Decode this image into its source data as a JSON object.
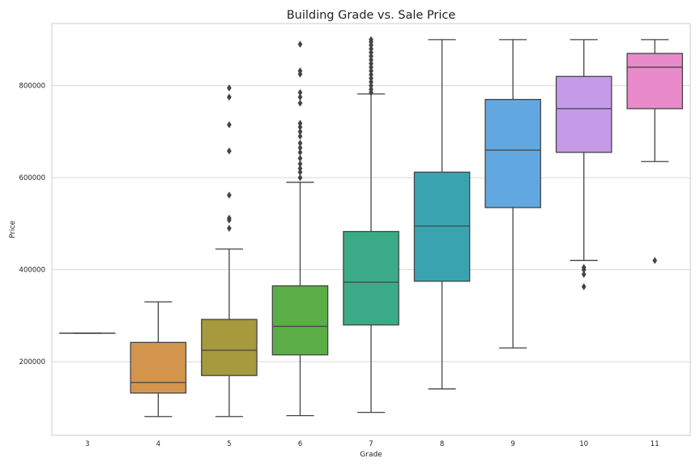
{
  "chart_data": {
    "type": "box",
    "title": "Building Grade vs. Sale Price",
    "xlabel": "Grade",
    "ylabel": "Price",
    "categories": [
      "3",
      "4",
      "5",
      "6",
      "7",
      "8",
      "9",
      "10",
      "11"
    ],
    "yticks": [
      200000,
      400000,
      600000,
      800000
    ],
    "ytick_labels": [
      "200000",
      "400000",
      "600000",
      "800000"
    ],
    "ylim": [
      40000,
      935000
    ],
    "grid": true,
    "boxes": [
      {
        "category": "3",
        "color": "#e1812c",
        "whislo": 262000,
        "q1": 262000,
        "med": 262000,
        "q3": 262000,
        "whishi": 262000,
        "fliers": []
      },
      {
        "category": "4",
        "color": "#d3954d",
        "whislo": 81000,
        "q1": 132000,
        "med": 155000,
        "q3": 242000,
        "whishi": 330000,
        "fliers": []
      },
      {
        "category": "5",
        "color": "#a6993e",
        "whislo": 81000,
        "q1": 170000,
        "med": 225000,
        "q3": 292000,
        "whishi": 445000,
        "fliers": [
          490000,
          508000,
          512000,
          562000,
          658000,
          715000,
          775000,
          795000
        ]
      },
      {
        "category": "6",
        "color": "#5aae45",
        "whislo": 83000,
        "q1": 215000,
        "med": 277000,
        "q3": 365000,
        "whishi": 590000,
        "fliers": [
          600000,
          612000,
          620000,
          630000,
          642000,
          655000,
          665000,
          675000,
          690000,
          700000,
          710000,
          718000,
          762000,
          775000,
          785000,
          825000,
          832000,
          890000
        ]
      },
      {
        "category": "7",
        "color": "#3aab86",
        "whislo": 90000,
        "q1": 280000,
        "med": 373000,
        "q3": 483000,
        "whishi": 782000,
        "fliers": [
          785000,
          792000,
          800000,
          808000,
          816000,
          824000,
          832000,
          840000,
          848000,
          856000,
          864000,
          872000,
          880000,
          888000,
          895000,
          900000
        ]
      },
      {
        "category": "8",
        "color": "#3aa3b0",
        "whislo": 141000,
        "q1": 375000,
        "med": 495000,
        "q3": 612000,
        "whishi": 900000,
        "fliers": []
      },
      {
        "category": "9",
        "color": "#62a8e0",
        "whislo": 230000,
        "q1": 535000,
        "med": 660000,
        "q3": 770000,
        "whishi": 900000,
        "fliers": []
      },
      {
        "category": "10",
        "color": "#c59be8",
        "whislo": 420000,
        "q1": 655000,
        "med": 750000,
        "q3": 820000,
        "whishi": 900000,
        "fliers": [
          363000,
          390000,
          400000,
          405000
        ]
      },
      {
        "category": "11",
        "color": "#e98bcb",
        "whislo": 635000,
        "q1": 750000,
        "med": 840000,
        "q3": 870000,
        "whishi": 900000,
        "fliers": [
          420000
        ]
      }
    ]
  }
}
